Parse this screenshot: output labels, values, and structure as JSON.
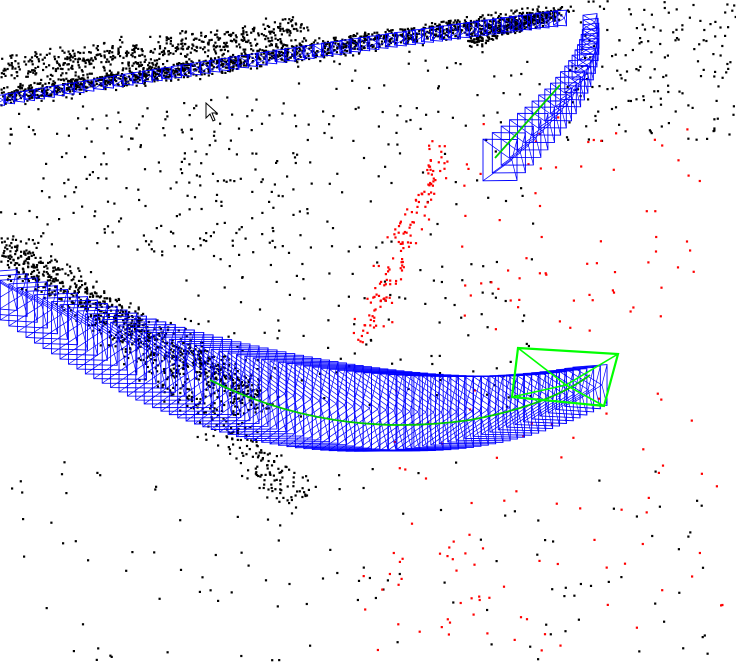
{
  "viewer": {
    "background": "#ffffff",
    "cursor_icon": "arrow-cursor-icon"
  },
  "colors": {
    "map_points": "#000000",
    "local_map_points": "#ff0000",
    "keyframes": "#0000ff",
    "current_camera": "#00ff00",
    "trajectory_graph": "#00cc00"
  },
  "layers": {
    "map_points": "visible",
    "local_map_points": "visible",
    "keyframes": "visible",
    "current_camera": "visible",
    "covisibility_graph": "visible"
  }
}
